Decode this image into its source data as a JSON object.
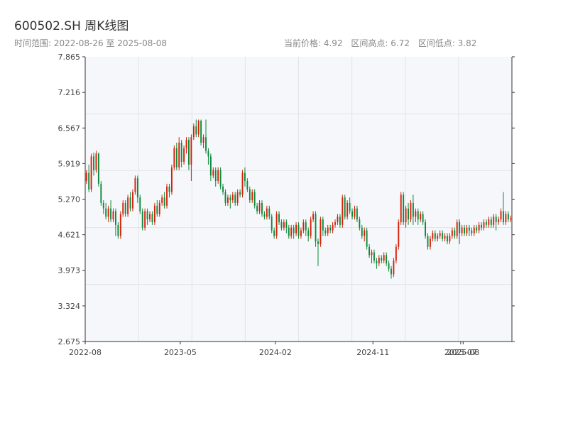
{
  "header": {
    "title": "600502.SH 周K线图",
    "subtitle": "时间范围: 2022-08-26 至 2025-08-08",
    "current_price": "当前价格: 4.92",
    "range_high": "区间高点: 6.72",
    "range_low": "区间低点: 3.82"
  },
  "colors": {
    "up": "#d81e06",
    "down": "#0a8a3a",
    "plot_bg": "#f5f7fa",
    "grid": "#e0e3e8"
  },
  "chart_data": {
    "type": "candlestick",
    "title": "600502.SH 周K线图",
    "xlabel": "",
    "ylabel": "",
    "ylim": [
      2.675,
      7.865
    ],
    "y_ticks": [
      "7.865",
      "7.216",
      "6.567",
      "5.919",
      "5.270",
      "4.621",
      "3.973",
      "3.324",
      "2.675"
    ],
    "x_ticks": [
      {
        "label": "2022-08",
        "index": 0
      },
      {
        "label": "2023-05",
        "index": 39
      },
      {
        "label": "2024-02",
        "index": 78
      },
      {
        "label": "2024-11",
        "index": 118
      },
      {
        "label": "2025-07",
        "index": 154
      },
      {
        "label": "2025-08",
        "index": 155
      }
    ],
    "candles": [
      [
        5.6,
        5.75,
        5.8,
        5.55
      ],
      [
        5.75,
        5.45,
        5.9,
        5.4
      ],
      [
        5.45,
        6.05,
        6.1,
        5.4
      ],
      [
        6.05,
        5.8,
        6.12,
        5.7
      ],
      [
        5.8,
        6.1,
        6.15,
        5.75
      ],
      [
        6.1,
        5.55,
        6.12,
        5.5
      ],
      [
        5.55,
        5.2,
        5.6,
        5.15
      ],
      [
        5.2,
        5.1,
        5.25,
        5.0
      ],
      [
        5.1,
        4.95,
        5.2,
        4.9
      ],
      [
        4.95,
        5.1,
        5.15,
        4.85
      ],
      [
        5.1,
        4.9,
        5.25,
        4.85
      ],
      [
        4.9,
        5.05,
        5.1,
        4.85
      ],
      [
        5.05,
        4.8,
        5.1,
        4.6
      ],
      [
        4.8,
        4.6,
        4.85,
        4.55
      ],
      [
        4.6,
        5.0,
        5.05,
        4.55
      ],
      [
        5.0,
        5.2,
        5.25,
        4.95
      ],
      [
        5.2,
        5.0,
        5.25,
        4.95
      ],
      [
        5.0,
        5.3,
        5.35,
        4.95
      ],
      [
        5.3,
        5.1,
        5.4,
        5.05
      ],
      [
        5.1,
        5.4,
        5.45,
        5.05
      ],
      [
        5.4,
        5.65,
        5.7,
        5.35
      ],
      [
        5.65,
        5.3,
        5.7,
        5.2
      ],
      [
        5.3,
        5.05,
        5.35,
        5.0
      ],
      [
        5.05,
        4.75,
        5.1,
        4.7
      ],
      [
        4.75,
        5.05,
        5.1,
        4.7
      ],
      [
        5.05,
        4.9,
        5.1,
        4.8
      ],
      [
        4.9,
        5.0,
        5.05,
        4.85
      ],
      [
        5.0,
        4.85,
        5.05,
        4.8
      ],
      [
        4.85,
        5.15,
        5.2,
        4.8
      ],
      [
        5.15,
        5.0,
        5.25,
        4.95
      ],
      [
        5.0,
        5.2,
        5.25,
        4.95
      ],
      [
        5.2,
        5.3,
        5.35,
        5.15
      ],
      [
        5.3,
        5.15,
        5.4,
        5.1
      ],
      [
        5.15,
        5.5,
        5.55,
        5.1
      ],
      [
        5.5,
        5.4,
        5.55,
        5.3
      ],
      [
        5.4,
        5.85,
        5.9,
        5.35
      ],
      [
        5.85,
        6.2,
        6.25,
        5.8
      ],
      [
        6.2,
        5.85,
        6.3,
        5.8
      ],
      [
        5.85,
        6.3,
        6.4,
        5.8
      ],
      [
        6.3,
        5.95,
        6.35,
        5.85
      ],
      [
        5.95,
        6.2,
        6.25,
        5.9
      ],
      [
        6.2,
        6.35,
        6.4,
        6.1
      ],
      [
        6.35,
        5.9,
        6.4,
        5.8
      ],
      [
        5.9,
        6.4,
        6.45,
        5.6
      ],
      [
        6.4,
        6.6,
        6.65,
        6.35
      ],
      [
        6.6,
        6.45,
        6.72,
        6.4
      ],
      [
        6.45,
        6.7,
        6.72,
        6.4
      ],
      [
        6.7,
        6.3,
        6.72,
        6.25
      ],
      [
        6.3,
        6.4,
        6.45,
        6.2
      ],
      [
        6.4,
        6.15,
        6.72,
        6.1
      ],
      [
        6.15,
        6.05,
        6.2,
        5.9
      ],
      [
        6.05,
        5.7,
        6.1,
        5.6
      ],
      [
        5.7,
        5.8,
        5.85,
        5.65
      ],
      [
        5.8,
        5.6,
        5.85,
        5.5
      ],
      [
        5.6,
        5.8,
        5.85,
        5.55
      ],
      [
        5.8,
        5.5,
        5.85,
        5.45
      ],
      [
        5.5,
        5.4,
        5.55,
        5.35
      ],
      [
        5.4,
        5.2,
        5.45,
        5.15
      ],
      [
        5.2,
        5.3,
        5.35,
        5.15
      ],
      [
        5.3,
        5.25,
        5.35,
        5.1
      ],
      [
        5.25,
        5.35,
        5.4,
        5.2
      ],
      [
        5.35,
        5.2,
        5.4,
        5.15
      ],
      [
        5.2,
        5.4,
        5.45,
        5.15
      ],
      [
        5.4,
        5.35,
        5.45,
        5.3
      ],
      [
        5.35,
        5.75,
        5.8,
        5.3
      ],
      [
        5.75,
        5.6,
        5.85,
        5.5
      ],
      [
        5.6,
        5.45,
        5.65,
        5.4
      ],
      [
        5.45,
        5.25,
        5.5,
        5.2
      ],
      [
        5.25,
        5.4,
        5.45,
        5.2
      ],
      [
        5.4,
        5.15,
        5.45,
        5.1
      ],
      [
        5.15,
        5.05,
        5.2,
        5.0
      ],
      [
        5.05,
        5.2,
        5.25,
        5.0
      ],
      [
        5.2,
        5.0,
        5.25,
        4.95
      ],
      [
        5.0,
        4.95,
        5.05,
        4.9
      ],
      [
        4.95,
        5.1,
        5.15,
        4.9
      ],
      [
        5.1,
        4.95,
        5.15,
        4.9
      ],
      [
        4.95,
        4.7,
        5.0,
        4.65
      ],
      [
        4.7,
        4.6,
        4.75,
        4.55
      ],
      [
        4.6,
        5.0,
        5.05,
        4.55
      ],
      [
        5.0,
        4.85,
        5.05,
        4.8
      ],
      [
        4.85,
        4.75,
        4.9,
        4.7
      ],
      [
        4.75,
        4.85,
        4.9,
        4.7
      ],
      [
        4.85,
        4.75,
        4.9,
        4.65
      ],
      [
        4.75,
        4.6,
        4.8,
        4.55
      ],
      [
        4.6,
        4.75,
        4.8,
        4.55
      ],
      [
        4.75,
        4.65,
        4.8,
        4.55
      ],
      [
        4.65,
        4.8,
        4.85,
        4.6
      ],
      [
        4.8,
        4.6,
        4.85,
        4.55
      ],
      [
        4.6,
        4.7,
        4.75,
        4.55
      ],
      [
        4.7,
        4.85,
        4.9,
        4.65
      ],
      [
        4.85,
        4.7,
        4.9,
        4.6
      ],
      [
        4.7,
        4.6,
        4.75,
        4.5
      ],
      [
        4.6,
        4.9,
        4.95,
        4.55
      ],
      [
        4.9,
        5.0,
        5.05,
        4.85
      ],
      [
        5.0,
        4.5,
        5.05,
        4.4
      ],
      [
        4.5,
        4.45,
        4.55,
        4.05
      ],
      [
        4.45,
        4.9,
        4.95,
        4.4
      ],
      [
        4.9,
        4.7,
        4.95,
        4.6
      ],
      [
        4.7,
        4.65,
        4.75,
        4.6
      ],
      [
        4.65,
        4.75,
        4.8,
        4.6
      ],
      [
        4.75,
        4.7,
        4.8,
        4.65
      ],
      [
        4.7,
        4.8,
        4.85,
        4.65
      ],
      [
        4.8,
        4.85,
        4.9,
        4.75
      ],
      [
        4.85,
        4.95,
        5.0,
        4.8
      ],
      [
        4.95,
        4.8,
        5.0,
        4.75
      ],
      [
        4.8,
        5.3,
        5.35,
        4.75
      ],
      [
        5.3,
        4.95,
        5.35,
        4.9
      ],
      [
        4.95,
        5.2,
        5.25,
        4.9
      ],
      [
        5.2,
        5.05,
        5.3,
        5.0
      ],
      [
        5.05,
        4.95,
        5.1,
        4.9
      ],
      [
        4.95,
        5.1,
        5.15,
        4.9
      ],
      [
        5.1,
        4.9,
        5.15,
        4.85
      ],
      [
        4.9,
        4.75,
        4.95,
        4.7
      ],
      [
        4.75,
        4.6,
        4.8,
        4.55
      ],
      [
        4.6,
        4.7,
        4.75,
        4.5
      ],
      [
        4.7,
        4.4,
        4.75,
        4.35
      ],
      [
        4.4,
        4.25,
        4.45,
        4.2
      ],
      [
        4.25,
        4.3,
        4.35,
        4.1
      ],
      [
        4.3,
        4.15,
        4.35,
        4.1
      ],
      [
        4.15,
        4.1,
        4.2,
        4.0
      ],
      [
        4.1,
        4.2,
        4.25,
        4.05
      ],
      [
        4.2,
        4.15,
        4.25,
        4.1
      ],
      [
        4.15,
        4.25,
        4.3,
        4.1
      ],
      [
        4.25,
        4.1,
        4.3,
        4.05
      ],
      [
        4.1,
        4.0,
        4.15,
        3.95
      ],
      [
        4.0,
        3.9,
        4.05,
        3.82
      ],
      [
        3.9,
        4.15,
        4.2,
        3.85
      ],
      [
        4.15,
        4.4,
        4.45,
        4.1
      ],
      [
        4.4,
        4.85,
        4.9,
        4.35
      ],
      [
        4.85,
        5.35,
        5.4,
        4.8
      ],
      [
        5.35,
        4.85,
        5.4,
        4.8
      ],
      [
        4.85,
        5.1,
        5.15,
        4.75
      ],
      [
        5.1,
        4.9,
        5.2,
        4.8
      ],
      [
        4.9,
        5.2,
        5.25,
        4.85
      ],
      [
        5.2,
        4.95,
        5.35,
        4.8
      ],
      [
        4.95,
        5.05,
        5.1,
        4.85
      ],
      [
        5.05,
        4.9,
        5.1,
        4.8
      ],
      [
        4.9,
        5.0,
        5.05,
        4.85
      ],
      [
        5.0,
        4.85,
        5.05,
        4.8
      ],
      [
        4.85,
        4.6,
        4.9,
        4.55
      ],
      [
        4.6,
        4.4,
        4.65,
        4.35
      ],
      [
        4.4,
        4.55,
        4.6,
        4.35
      ],
      [
        4.55,
        4.65,
        4.7,
        4.5
      ],
      [
        4.65,
        4.55,
        4.7,
        4.5
      ],
      [
        4.55,
        4.6,
        4.65,
        4.5
      ],
      [
        4.6,
        4.65,
        4.7,
        4.55
      ],
      [
        4.65,
        4.55,
        4.7,
        4.5
      ],
      [
        4.55,
        4.6,
        4.65,
        4.5
      ],
      [
        4.6,
        4.5,
        4.65,
        4.45
      ],
      [
        4.5,
        4.6,
        4.65,
        4.45
      ],
      [
        4.6,
        4.7,
        4.75,
        4.55
      ],
      [
        4.7,
        4.6,
        4.75,
        4.55
      ],
      [
        4.6,
        4.85,
        4.9,
        4.55
      ],
      [
        4.85,
        4.65,
        4.9,
        4.45
      ],
      [
        4.65,
        4.75,
        4.8,
        4.6
      ],
      [
        4.75,
        4.65,
        4.8,
        4.6
      ],
      [
        4.65,
        4.75,
        4.8,
        4.6
      ],
      [
        4.75,
        4.7,
        4.8,
        4.6
      ],
      [
        4.7,
        4.65,
        4.75,
        4.6
      ],
      [
        4.65,
        4.75,
        4.8,
        4.6
      ],
      [
        4.75,
        4.7,
        4.8,
        4.65
      ],
      [
        4.7,
        4.8,
        4.85,
        4.65
      ],
      [
        4.8,
        4.75,
        4.85,
        4.7
      ],
      [
        4.75,
        4.85,
        4.9,
        4.7
      ],
      [
        4.85,
        4.8,
        4.9,
        4.75
      ],
      [
        4.8,
        4.9,
        4.95,
        4.75
      ],
      [
        4.9,
        4.8,
        4.95,
        4.75
      ],
      [
        4.8,
        4.95,
        5.0,
        4.75
      ],
      [
        4.95,
        4.85,
        5.0,
        4.7
      ],
      [
        4.85,
        4.9,
        4.95,
        4.8
      ],
      [
        4.9,
        5.05,
        5.1,
        4.85
      ],
      [
        5.05,
        4.85,
        5.4,
        4.8
      ],
      [
        4.85,
        5.0,
        5.05,
        4.8
      ],
      [
        5.0,
        4.9,
        5.05,
        4.85
      ],
      [
        4.9,
        4.92,
        4.97,
        4.85
      ]
    ]
  }
}
